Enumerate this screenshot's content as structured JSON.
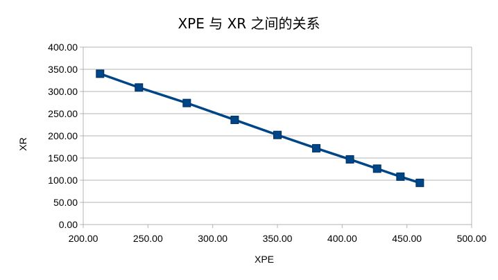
{
  "chart_data": {
    "type": "line",
    "title": "XPE 与 XR 之间的关系",
    "xlabel": "XPE",
    "ylabel": "XR",
    "xlim": [
      200,
      500
    ],
    "ylim": [
      0,
      400
    ],
    "x_ticks": [
      "200.00",
      "250.00",
      "300.00",
      "350.00",
      "400.00",
      "450.00",
      "500.00"
    ],
    "y_ticks": [
      "0.00",
      "50.00",
      "100.00",
      "150.00",
      "200.00",
      "250.00",
      "300.00",
      "350.00",
      "400.00"
    ],
    "grid": true,
    "legend": "none",
    "series": [
      {
        "color": "#004586",
        "marker": "square",
        "points": [
          {
            "x": 213,
            "y": 340
          },
          {
            "x": 243,
            "y": 309
          },
          {
            "x": 280,
            "y": 274
          },
          {
            "x": 317,
            "y": 236
          },
          {
            "x": 350,
            "y": 202
          },
          {
            "x": 380,
            "y": 172
          },
          {
            "x": 406,
            "y": 147
          },
          {
            "x": 427,
            "y": 126
          },
          {
            "x": 445,
            "y": 108
          },
          {
            "x": 460,
            "y": 94
          }
        ]
      }
    ]
  }
}
